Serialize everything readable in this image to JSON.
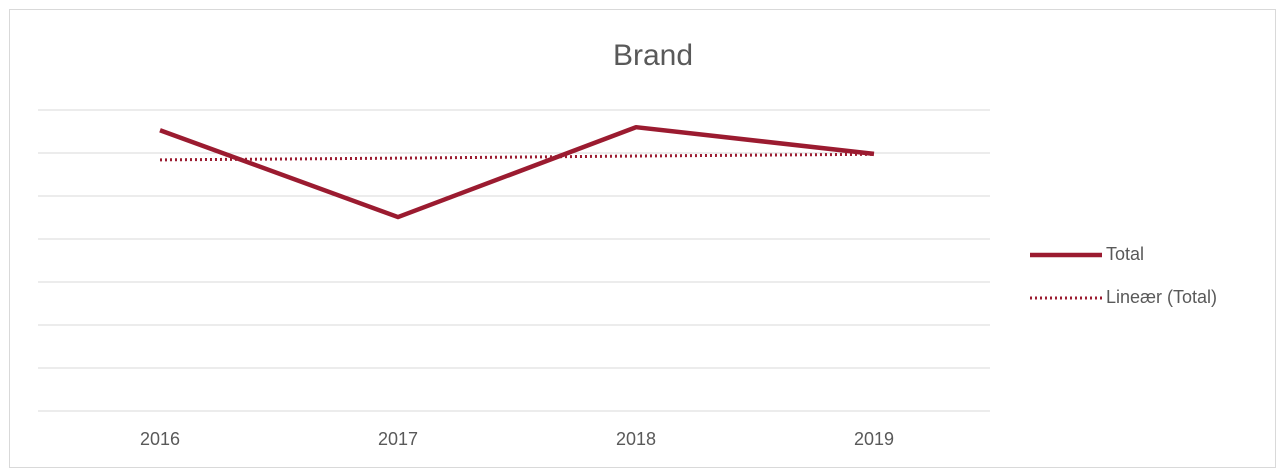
{
  "chart_data": {
    "type": "line",
    "title": "Brand",
    "categories": [
      "2016",
      "2017",
      "2018",
      "2019"
    ],
    "series": [
      {
        "name": "Total",
        "color": "#9b1b30",
        "style": "solid",
        "values": [
          6.53,
          4.51,
          6.6,
          5.98
        ]
      },
      {
        "name": "Lineær (Total)",
        "color": "#9b1b30",
        "style": "dotted",
        "values": [
          5.84,
          5.88,
          5.93,
          5.97
        ]
      }
    ],
    "ylim": [
      0,
      7
    ],
    "yticks": [
      0,
      1,
      2,
      3,
      4,
      5,
      6,
      7
    ],
    "grid": true,
    "show_ytick_labels": false,
    "legend": "right"
  }
}
